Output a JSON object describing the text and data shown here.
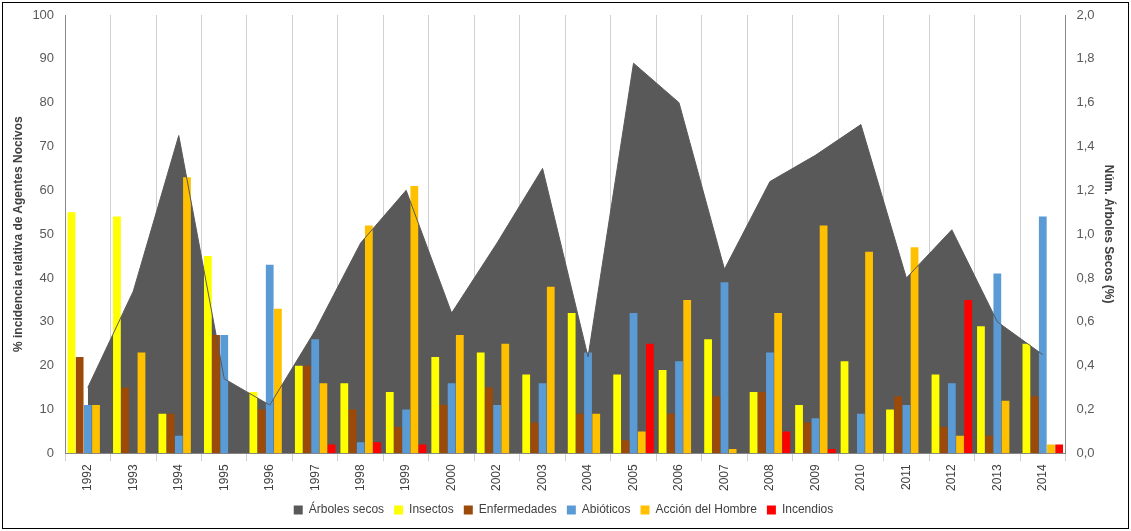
{
  "chart_data": {
    "type": "bar",
    "ylabel": "% incidencia relativa de Agentes Nocivos",
    "y2label": "Núm. Árboles Secos (%)",
    "categories": [
      "1992",
      "1993",
      "1994",
      "1995",
      "1996",
      "1997",
      "1998",
      "1999",
      "2000",
      "2002",
      "2003",
      "2004",
      "2005",
      "2006",
      "2007",
      "2008",
      "2009",
      "2010",
      "2011",
      "2012",
      "2013",
      "2014"
    ],
    "series": [
      {
        "name": "Árboles secos",
        "type": "area",
        "axis": "y2",
        "color": "#595959",
        "values": [
          0.3,
          0.74,
          1.45,
          0.34,
          0.22,
          0.56,
          0.96,
          1.2,
          0.64,
          0.96,
          1.3,
          0.44,
          1.78,
          1.6,
          0.84,
          1.24,
          1.36,
          1.5,
          0.8,
          1.02,
          0.6,
          0.45
        ]
      },
      {
        "name": "Insectos",
        "color": "#ffff00",
        "values": [
          55,
          54,
          9,
          45,
          14,
          20,
          16,
          14,
          22,
          23,
          18,
          32,
          18,
          19,
          26,
          14,
          11,
          21,
          10,
          18,
          29,
          25
        ]
      },
      {
        "name": "Enfermedades",
        "color": "#9c4a0a",
        "values": [
          22,
          15,
          9,
          27,
          10,
          20,
          10,
          6,
          11,
          15,
          7,
          9,
          3,
          9,
          13,
          14,
          7,
          0,
          13,
          6,
          4,
          13
        ]
      },
      {
        "name": "Abióticos",
        "color": "#5b9bd5",
        "values": [
          11,
          0,
          4,
          27,
          43,
          26,
          2.5,
          10,
          16,
          11,
          16,
          23,
          32,
          21,
          39,
          23,
          8,
          9,
          11,
          16,
          41,
          54
        ]
      },
      {
        "name": "Acción del Hombre",
        "color": "#ffc000",
        "values": [
          11,
          23,
          63,
          0,
          33,
          16,
          52,
          61,
          27,
          25,
          38,
          9,
          5,
          35,
          1,
          32,
          52,
          46,
          47,
          4,
          12,
          2
        ]
      },
      {
        "name": "Incendios",
        "color": "#ff0000",
        "values": [
          0,
          0,
          0,
          0,
          0,
          2,
          2.5,
          2,
          0,
          0,
          0,
          0,
          25,
          0,
          0,
          5,
          1,
          0,
          0,
          35,
          0,
          2
        ]
      }
    ],
    "ylim": [
      0,
      100
    ],
    "yticks": [
      0,
      10,
      20,
      30,
      40,
      50,
      60,
      70,
      80,
      90,
      100
    ],
    "y2lim": [
      0,
      2
    ],
    "y2ticks": [
      {
        "value": 0,
        "label": "0,0"
      },
      {
        "value": 0.2,
        "label": "0,2"
      },
      {
        "value": 0.4,
        "label": "0,4"
      },
      {
        "value": 0.6,
        "label": "0,6"
      },
      {
        "value": 0.8,
        "label": "0,8"
      },
      {
        "value": 1,
        "label": "1,0"
      },
      {
        "value": 1.2,
        "label": "1,2"
      },
      {
        "value": 1.4,
        "label": "1,4"
      },
      {
        "value": 1.6,
        "label": "1,6"
      },
      {
        "value": 1.8,
        "label": "1,8"
      },
      {
        "value": 2,
        "label": "2,0"
      }
    ],
    "grid": "x",
    "legend": "bottom"
  }
}
